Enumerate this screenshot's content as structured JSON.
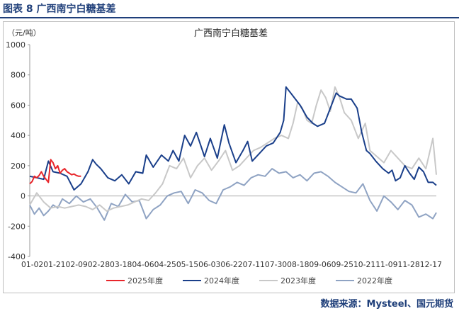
{
  "caption": "图表 8  广西南宁白糖基差",
  "source": "数据来源：Mysteel、国元期货",
  "colors": {
    "caption": "#1f3f7a",
    "s2025": "#e8262b",
    "s2024": "#1a3f8a",
    "s2023": "#c8c8c8",
    "s2022": "#8fa3c3"
  },
  "chart_data": {
    "type": "line",
    "title": "广西南宁白糖基差",
    "ylabel": "（元/吨）",
    "ylim": [
      -400,
      1000
    ],
    "yticks": [
      -400,
      -200,
      0,
      200,
      400,
      600,
      800,
      1000
    ],
    "xticks": [
      "01-02",
      "01-21",
      "02-09",
      "02-28",
      "03-18",
      "04-06",
      "04-25",
      "05-15",
      "06-03",
      "06-22",
      "07-11",
      "07-30",
      "08-18",
      "09-06",
      "09-25",
      "10-21",
      "11-09",
      "11-28",
      "12-17"
    ],
    "x_range": [
      "01-02",
      "12-17"
    ],
    "legend_position": "bottom",
    "grid": false,
    "series": [
      {
        "name": "2025年度",
        "x": [
          "01-02",
          "01-04",
          "01-06",
          "01-08",
          "01-10",
          "01-12",
          "01-14",
          "01-16",
          "01-18",
          "01-20",
          "01-22",
          "01-24",
          "01-26",
          "01-28",
          "01-30",
          "02-01",
          "02-03",
          "02-05",
          "02-07",
          "02-09",
          "02-11",
          "02-13",
          "02-15"
        ],
        "y": [
          80,
          95,
          130,
          120,
          135,
          160,
          130,
          110,
          90,
          240,
          220,
          180,
          200,
          150,
          170,
          180,
          160,
          150,
          140,
          145,
          135,
          130,
          130
        ]
      },
      {
        "name": "2024年度",
        "x": [
          "01-02",
          "01-08",
          "01-14",
          "01-18",
          "01-22",
          "01-28",
          "02-03",
          "02-09",
          "02-15",
          "02-21",
          "02-25",
          "02-28",
          "03-04",
          "03-10",
          "03-16",
          "03-22",
          "03-28",
          "04-03",
          "04-09",
          "04-12",
          "04-18",
          "04-25",
          "05-01",
          "05-05",
          "05-10",
          "05-15",
          "05-20",
          "05-25",
          "06-01",
          "06-06",
          "06-12",
          "06-18",
          "06-22",
          "06-28",
          "07-04",
          "07-08",
          "07-12",
          "07-18",
          "07-24",
          "07-30",
          "08-05",
          "08-08",
          "08-10",
          "08-12",
          "08-14",
          "08-18",
          "08-22",
          "08-28",
          "09-02",
          "09-06",
          "09-12",
          "09-18",
          "09-22",
          "09-25",
          "10-01",
          "10-05",
          "10-10",
          "10-14",
          "10-18",
          "10-21",
          "10-26",
          "11-01",
          "11-06",
          "11-09",
          "11-12",
          "11-16",
          "11-20",
          "11-24",
          "11-28",
          "12-02",
          "12-06",
          "12-10",
          "12-14",
          "12-17"
        ],
        "y": [
          130,
          120,
          110,
          230,
          160,
          150,
          130,
          40,
          80,
          160,
          240,
          210,
          180,
          120,
          100,
          140,
          80,
          160,
          150,
          270,
          190,
          270,
          230,
          300,
          230,
          400,
          330,
          420,
          260,
          380,
          250,
          470,
          350,
          220,
          300,
          360,
          230,
          280,
          330,
          350,
          420,
          500,
          720,
          700,
          680,
          640,
          600,
          520,
          480,
          460,
          480,
          600,
          680,
          660,
          640,
          640,
          580,
          420,
          300,
          280,
          230,
          180,
          150,
          170,
          100,
          120,
          200,
          150,
          110,
          190,
          160,
          90,
          90,
          70
        ]
      },
      {
        "name": "2023年度",
        "x": [
          "01-02",
          "01-08",
          "01-14",
          "01-20",
          "01-26",
          "02-01",
          "02-07",
          "02-13",
          "02-19",
          "02-25",
          "03-03",
          "03-09",
          "03-15",
          "03-21",
          "03-27",
          "04-02",
          "04-08",
          "04-14",
          "04-20",
          "04-26",
          "05-02",
          "05-08",
          "05-14",
          "05-20",
          "05-26",
          "06-01",
          "06-07",
          "06-13",
          "06-19",
          "06-25",
          "07-01",
          "07-07",
          "07-13",
          "07-19",
          "07-25",
          "07-31",
          "08-06",
          "08-12",
          "08-16",
          "08-20",
          "08-24",
          "08-28",
          "09-01",
          "09-05",
          "09-09",
          "09-13",
          "09-17",
          "09-21",
          "09-25",
          "09-29",
          "10-05",
          "10-11",
          "10-17",
          "10-21",
          "10-27",
          "11-02",
          "11-08",
          "11-14",
          "11-20",
          "11-26",
          "12-02",
          "12-08",
          "12-14",
          "12-17"
        ],
        "y": [
          -60,
          20,
          -40,
          -80,
          -70,
          -80,
          -70,
          -60,
          -70,
          -90,
          -60,
          -100,
          -80,
          -70,
          -60,
          -40,
          -20,
          -30,
          20,
          80,
          200,
          180,
          250,
          120,
          200,
          250,
          170,
          230,
          300,
          170,
          200,
          250,
          300,
          320,
          350,
          380,
          400,
          380,
          480,
          620,
          580,
          500,
          480,
          600,
          700,
          650,
          560,
          720,
          650,
          550,
          500,
          380,
          480,
          300,
          260,
          220,
          300,
          250,
          200,
          180,
          250,
          180,
          380,
          140
        ]
      },
      {
        "name": "2022年度",
        "x": [
          "01-02",
          "01-06",
          "01-10",
          "01-14",
          "01-18",
          "01-22",
          "01-26",
          "01-30",
          "02-05",
          "02-11",
          "02-17",
          "02-23",
          "03-01",
          "03-07",
          "03-13",
          "03-19",
          "03-25",
          "03-31",
          "04-06",
          "04-12",
          "04-18",
          "04-24",
          "04-30",
          "05-06",
          "05-12",
          "05-18",
          "05-24",
          "05-30",
          "06-05",
          "06-11",
          "06-17",
          "06-23",
          "06-29",
          "07-05",
          "07-11",
          "07-17",
          "07-23",
          "07-29",
          "08-04",
          "08-10",
          "08-16",
          "08-22",
          "08-28",
          "09-03",
          "09-09",
          "09-15",
          "09-21",
          "09-27",
          "10-03",
          "10-09",
          "10-15",
          "10-21",
          "10-27",
          "11-02",
          "11-08",
          "11-14",
          "11-20",
          "11-26",
          "12-02",
          "12-08",
          "12-14",
          "12-17"
        ],
        "y": [
          -60,
          -120,
          -80,
          -130,
          -100,
          -60,
          -80,
          -20,
          -50,
          0,
          -40,
          -20,
          -80,
          -160,
          -50,
          -70,
          10,
          -40,
          -30,
          -150,
          -90,
          -60,
          0,
          20,
          30,
          -50,
          40,
          20,
          -30,
          -50,
          40,
          60,
          90,
          70,
          120,
          140,
          130,
          180,
          150,
          160,
          120,
          140,
          100,
          150,
          160,
          130,
          90,
          60,
          30,
          20,
          80,
          -30,
          -100,
          0,
          -40,
          -90,
          -30,
          -60,
          -140,
          -120,
          -150,
          -110
        ]
      }
    ]
  }
}
